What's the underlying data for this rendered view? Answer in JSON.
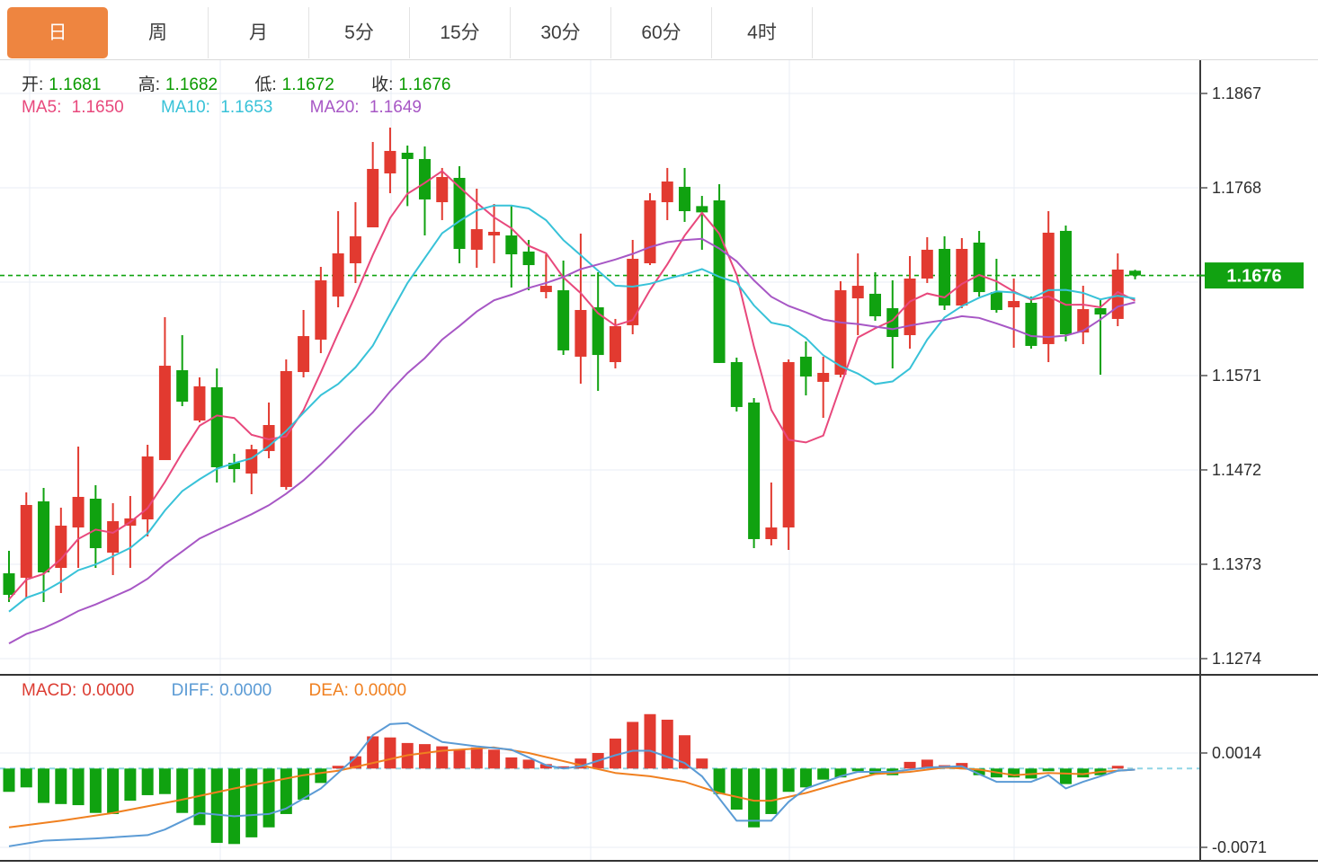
{
  "tabs": {
    "items": [
      {
        "label": "日",
        "active": true
      },
      {
        "label": "周",
        "active": false
      },
      {
        "label": "月",
        "active": false
      },
      {
        "label": "5分",
        "active": false
      },
      {
        "label": "15分",
        "active": false
      },
      {
        "label": "30分",
        "active": false
      },
      {
        "label": "60分",
        "active": false
      },
      {
        "label": "4时",
        "active": false
      }
    ]
  },
  "legend": {
    "ohlc": [
      {
        "label": "开:",
        "value": "1.1681"
      },
      {
        "label": "高:",
        "value": "1.1682"
      },
      {
        "label": "低:",
        "value": "1.1672"
      },
      {
        "label": "收:",
        "value": "1.1676"
      }
    ],
    "ma": [
      {
        "label": "MA5:",
        "value": "1.1650"
      },
      {
        "label": "MA10:",
        "value": "1.1653"
      },
      {
        "label": "MA20:",
        "value": "1.1649"
      }
    ],
    "macd": [
      {
        "label": "MACD:",
        "value": "0.0000"
      },
      {
        "label": "DIFF:",
        "value": "0.0000"
      },
      {
        "label": "DEA:",
        "value": "0.0000"
      }
    ]
  },
  "axis": {
    "main_ticks": [
      {
        "label": "1.1867",
        "price": 1.1867
      },
      {
        "label": "1.1768",
        "price": 1.1768
      },
      {
        "label": "1.1571",
        "price": 1.1571
      },
      {
        "label": "1.1472",
        "price": 1.1472
      },
      {
        "label": "1.1373",
        "price": 1.1373
      },
      {
        "label": "1.1274",
        "price": 1.1274
      }
    ],
    "hidden_tick_price": 1.1669,
    "badge": {
      "label": "1.1676",
      "price": 1.1676
    },
    "macd_ticks": [
      {
        "label": "0.0014",
        "value": 0.0014
      },
      {
        "label": "-0.0071",
        "value": -0.0071
      }
    ]
  },
  "colors": {
    "up": "#e23a30",
    "down": "#10a210",
    "ma5": "#e8487c",
    "ma10": "#38c2d8",
    "ma20": "#a757c5",
    "diff": "#5b9bd5",
    "dea": "#f08020",
    "price_line": "#0fa30f",
    "badge_bg": "#11a211",
    "accent_tab": "#ee8540",
    "grid": "#e9eef4",
    "axis_line": "#3a3a3a",
    "axis_text": "#2d2d2d",
    "zero_dash": "#90d5e5"
  },
  "chart_data": {
    "type": "candlestick+macd",
    "title": "Daily FX candlestick chart with MA5/MA10/MA20 overlays and MACD panel",
    "x_axis": "trading days (66 candles, unlabeled)",
    "y_axis_main": {
      "min": 1.1274,
      "max": 1.1867,
      "tick_step": 0.0099
    },
    "y_axis_macd": {
      "ticks": [
        0.0014,
        -0.0071
      ]
    },
    "current_price": 1.1676,
    "ohlc_display": {
      "open": 1.1681,
      "high": 1.1682,
      "low": 1.1672,
      "close": 1.1676
    },
    "ma_display": {
      "MA5": 1.165,
      "MA10": 1.1653,
      "MA20": 1.1649
    },
    "macd_display": {
      "MACD": 0.0,
      "DIFF": 0.0,
      "DEA": 0.0
    },
    "ma_periods": [
      5,
      10,
      20
    ],
    "ma_seed_closes": [
      1.123,
      1.1238,
      1.1242,
      1.1246,
      1.125,
      1.1254,
      1.1258,
      1.1262,
      1.1266,
      1.1272,
      1.1278,
      1.129,
      1.13,
      1.131,
      1.1322,
      1.133,
      1.1332,
      1.1334,
      1.1336,
      1.1338
    ],
    "candles": [
      [
        1.13635,
        1.13871,
        1.13334,
        1.13409
      ],
      [
        1.13588,
        1.14484,
        1.13381,
        1.14352
      ],
      [
        1.1439,
        1.14531,
        1.13334,
        1.13645
      ],
      [
        1.13692,
        1.14324,
        1.13428,
        1.14135
      ],
      [
        1.14116,
        1.14965,
        1.13692,
        1.14437
      ],
      [
        1.14418,
        1.14559,
        1.13692,
        1.13899
      ],
      [
        1.13852,
        1.14371,
        1.13617,
        1.14182
      ],
      [
        1.14135,
        1.14446,
        1.13692,
        1.14211
      ],
      [
        1.14201,
        1.14984,
        1.14022,
        1.14861
      ],
      [
        1.14823,
        1.16322,
        1.14823,
        1.15813
      ],
      [
        1.15766,
        1.16134,
        1.15389,
        1.15436
      ],
      [
        1.15238,
        1.15691,
        1.15219,
        1.15597
      ],
      [
        1.15587,
        1.15785,
        1.14588,
        1.14748
      ],
      [
        1.14795,
        1.14889,
        1.14588,
        1.14729
      ],
      [
        1.14682,
        1.14984,
        1.14465,
        1.14937
      ],
      [
        1.14918,
        1.15427,
        1.14842,
        1.15191
      ],
      [
        1.14541,
        1.15879,
        1.14512,
        1.15757
      ],
      [
        1.15747,
        1.16398,
        1.15691,
        1.16124
      ],
      [
        1.16087,
        1.1685,
        1.15945,
        1.16709
      ],
      [
        1.16539,
        1.17435,
        1.16426,
        1.16992
      ],
      [
        1.16888,
        1.17529,
        1.16681,
        1.17171
      ],
      [
        1.17265,
        1.18161,
        1.17265,
        1.17878
      ],
      [
        1.17831,
        1.18312,
        1.17624,
        1.18067
      ],
      [
        1.18048,
        1.18123,
        1.17488,
        1.17982
      ],
      [
        1.17982,
        1.18114,
        1.1718,
        1.17558
      ],
      [
        1.17529,
        1.17888,
        1.17341,
        1.17793
      ],
      [
        1.17784,
        1.17906,
        1.16888,
        1.17039
      ],
      [
        1.1703,
        1.17671,
        1.16841,
        1.17246
      ],
      [
        1.1718,
        1.1751,
        1.16888,
        1.17218
      ],
      [
        1.1718,
        1.17488,
        1.16634,
        1.16982
      ],
      [
        1.17011,
        1.17133,
        1.16605,
        1.16869
      ],
      [
        1.16586,
        1.16982,
        1.1652,
        1.16652
      ],
      [
        1.16605,
        1.16916,
        1.15926,
        1.15974
      ],
      [
        1.15908,
        1.17199,
        1.15625,
        1.16398
      ],
      [
        1.16426,
        1.16794,
        1.15549,
        1.15926
      ],
      [
        1.15851,
        1.16304,
        1.15785,
        1.16228
      ],
      [
        1.16238,
        1.17133,
        1.16143,
        1.16935
      ],
      [
        1.16888,
        1.17624,
        1.16869,
        1.17548
      ],
      [
        1.17529,
        1.17888,
        1.17341,
        1.17746
      ],
      [
        1.1769,
        1.17888,
        1.17322,
        1.17435
      ],
      [
        1.17488,
        1.17595,
        1.1703,
        1.17422
      ],
      [
        1.17548,
        1.17718,
        1.15842,
        1.15842
      ],
      [
        1.15851,
        1.15898,
        1.15333,
        1.1538
      ],
      [
        1.15427,
        1.15474,
        1.13899,
        1.13994
      ],
      [
        1.13994,
        1.14588,
        1.13928,
        1.14116
      ],
      [
        1.14116,
        1.15879,
        1.13881,
        1.15851
      ],
      [
        1.15908,
        1.16068,
        1.15502,
        1.157
      ],
      [
        1.15644,
        1.15908,
        1.15267,
        1.15738
      ],
      [
        1.15719,
        1.167,
        1.15691,
        1.16605
      ],
      [
        1.1652,
        1.16992,
        1.16134,
        1.16652
      ],
      [
        1.16568,
        1.16794,
        1.16285,
        1.16332
      ],
      [
        1.16417,
        1.16709,
        1.15785,
        1.16115
      ],
      [
        1.16134,
        1.16964,
        1.15992,
        1.16728
      ],
      [
        1.16728,
        1.17162,
        1.16681,
        1.1703
      ],
      [
        1.17039,
        1.17171,
        1.16398,
        1.16445
      ],
      [
        1.16445,
        1.17152,
        1.16417,
        1.17039
      ],
      [
        1.17105,
        1.17228,
        1.16539,
        1.16586
      ],
      [
        1.16586,
        1.16935,
        1.1637,
        1.16398
      ],
      [
        1.16426,
        1.16728,
        1.16002,
        1.16492
      ],
      [
        1.16473,
        1.16539,
        1.15992,
        1.16021
      ],
      [
        1.1604,
        1.17435,
        1.15851,
        1.17209
      ],
      [
        1.17228,
        1.17284,
        1.16068,
        1.16143
      ],
      [
        1.16162,
        1.16652,
        1.1604,
        1.16407
      ],
      [
        1.16417,
        1.16511,
        1.15719,
        1.16351
      ],
      [
        1.16304,
        1.16992,
        1.16228,
        1.16822
      ],
      [
        1.1681,
        1.1682,
        1.1672,
        1.1676
      ]
    ],
    "macd": {
      "hist": [
        -0.0021,
        -0.0017,
        -0.0031,
        -0.0032,
        -0.0033,
        -0.004,
        -0.0041,
        -0.0029,
        -0.0024,
        -0.0023,
        -0.004,
        -0.0051,
        -0.0067,
        -0.0068,
        -0.0062,
        -0.0053,
        -0.0041,
        -0.0028,
        -0.0013,
        0.0001,
        0.0011,
        0.0029,
        0.0028,
        0.0023,
        0.0022,
        0.002,
        0.0017,
        0.0019,
        0.0017,
        0.001,
        0.0008,
        0.0004,
        0.0002,
        0.0009,
        0.0014,
        0.0027,
        0.0042,
        0.0049,
        0.0044,
        0.003,
        0.0009,
        -0.0023,
        -0.0037,
        -0.0053,
        -0.0041,
        -0.0021,
        -0.0017,
        -0.001,
        -0.0008,
        -0.0001,
        -0.0005,
        -0.0006,
        0.0006,
        0.0008,
        0.0003,
        0.0005,
        -0.0006,
        -0.0008,
        -0.0008,
        -0.0009,
        -0.0001,
        -0.0014,
        -0.0008,
        -0.0006,
        0.0001,
        0.0
      ],
      "diff_keypoints": [
        [
          0,
          -0.007
        ],
        [
          2,
          -0.0065
        ],
        [
          5,
          -0.0063
        ],
        [
          8,
          -0.006
        ],
        [
          9,
          -0.0055
        ],
        [
          11,
          -0.004
        ],
        [
          13,
          -0.0043
        ],
        [
          15,
          -0.0041
        ],
        [
          16,
          -0.0036
        ],
        [
          18,
          -0.0018
        ],
        [
          20,
          0.001
        ],
        [
          21,
          0.003
        ],
        [
          22,
          0.004
        ],
        [
          23,
          0.0041
        ],
        [
          25,
          0.0024
        ],
        [
          27,
          0.002
        ],
        [
          29,
          0.0017
        ],
        [
          31,
          0.0003
        ],
        [
          32,
          0.0
        ],
        [
          33,
          0.0002
        ],
        [
          35,
          0.0012
        ],
        [
          36,
          0.0016
        ],
        [
          37,
          0.0016
        ],
        [
          39,
          0.0005
        ],
        [
          40,
          -0.0007
        ],
        [
          42,
          -0.0047
        ],
        [
          44,
          -0.0047
        ],
        [
          45,
          -0.003
        ],
        [
          46,
          -0.0018
        ],
        [
          48,
          -0.0007
        ],
        [
          49,
          -0.0003
        ],
        [
          51,
          -0.0003
        ],
        [
          53,
          0.0001
        ],
        [
          55,
          0.0002
        ],
        [
          57,
          -0.0012
        ],
        [
          59,
          -0.0012
        ],
        [
          60,
          -0.0006
        ],
        [
          61,
          -0.0018
        ],
        [
          62,
          -0.0012
        ],
        [
          63,
          -0.0007
        ],
        [
          64,
          -0.0002
        ],
        [
          65,
          -0.0001
        ]
      ],
      "dea_keypoints": [
        [
          0,
          -0.0053
        ],
        [
          3,
          -0.0047
        ],
        [
          6,
          -0.004
        ],
        [
          10,
          -0.0028
        ],
        [
          13,
          -0.0018
        ],
        [
          15,
          -0.0012
        ],
        [
          17,
          -0.0006
        ],
        [
          19,
          -0.0002
        ],
        [
          21,
          0.0005
        ],
        [
          23,
          0.0012
        ],
        [
          25,
          0.0016
        ],
        [
          28,
          0.0019
        ],
        [
          30,
          0.0014
        ],
        [
          33,
          0.0003
        ],
        [
          35,
          -0.0004
        ],
        [
          37,
          -0.0007
        ],
        [
          39,
          -0.0012
        ],
        [
          41,
          -0.0022
        ],
        [
          43,
          -0.0029
        ],
        [
          44,
          -0.0029
        ],
        [
          46,
          -0.0022
        ],
        [
          48,
          -0.0013
        ],
        [
          50,
          -0.0005
        ],
        [
          52,
          -0.0003
        ],
        [
          54,
          0.0001
        ],
        [
          56,
          -0.0001
        ],
        [
          58,
          -0.0006
        ],
        [
          60,
          -0.0004
        ],
        [
          62,
          -0.0005
        ],
        [
          63,
          -0.0003
        ],
        [
          65,
          -0.0001
        ]
      ]
    }
  }
}
